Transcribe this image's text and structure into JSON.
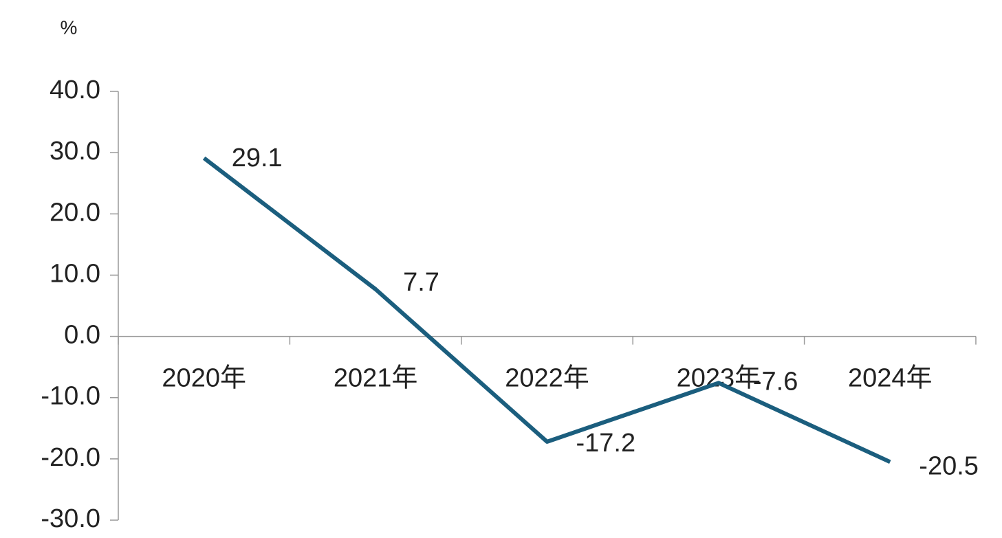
{
  "chart_data": {
    "type": "line",
    "y_label": "%",
    "categories": [
      "2020年",
      "2021年",
      "2022年",
      "2023年",
      "2024年"
    ],
    "series": [
      {
        "color": "#1b5e7e",
        "values": [
          29.1,
          7.7,
          -17.2,
          -7.6,
          -20.5
        ]
      }
    ],
    "ylim": [
      -30,
      40
    ],
    "yticks": [
      {
        "value": -30,
        "label": "-30.0"
      },
      {
        "value": -20,
        "label": "-20.0"
      },
      {
        "value": -10,
        "label": "-10.0"
      },
      {
        "value": 0,
        "label": "0.0"
      },
      {
        "value": 10,
        "label": "10.0"
      },
      {
        "value": 20,
        "label": "20.0"
      },
      {
        "value": 30,
        "label": "30.0"
      },
      {
        "value": 40,
        "label": "40.0"
      }
    ],
    "grid": false
  }
}
